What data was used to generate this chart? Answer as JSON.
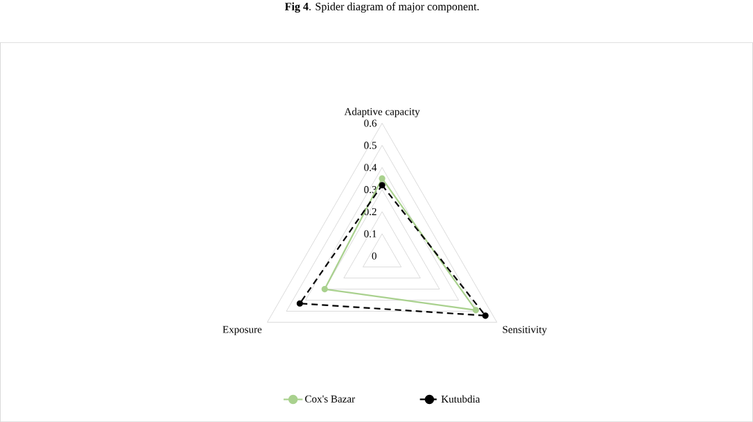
{
  "chart_data": {
    "type": "radar",
    "title": "**Fig 4**. Spider diagram of major component.",
    "categories": [
      "Adaptive capacity",
      "Sensitivity",
      "Exposure"
    ],
    "series": [
      {
        "name": "Cox's Bazar",
        "color": "#a9d18e",
        "values": [
          0.35,
          0.49,
          0.3
        ],
        "line_style": "solid"
      },
      {
        "name": "Kutubdia",
        "color": "#000000",
        "values": [
          0.32,
          0.54,
          0.43
        ],
        "line_style": "dashed"
      }
    ],
    "ylim": [
      0,
      0.6
    ],
    "yticks": [
      0,
      0.1,
      0.2,
      0.3,
      0.4,
      0.5,
      0.6
    ],
    "grid": true,
    "legend": "bottom",
    "marker": "circle"
  }
}
